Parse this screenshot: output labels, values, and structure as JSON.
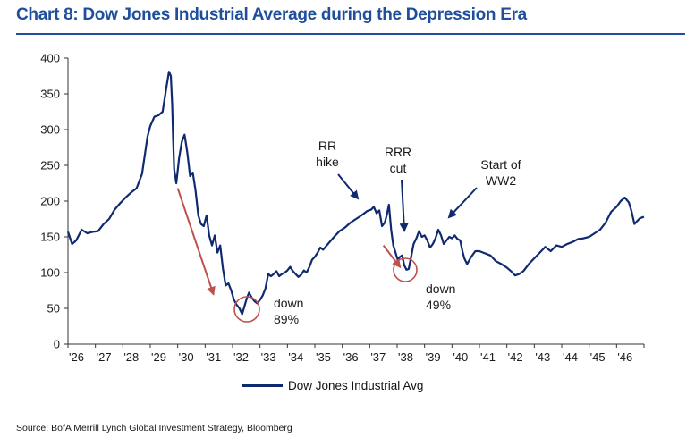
{
  "header": {
    "title": "Chart 8: Dow Jones Industrial Average during the Depression Era"
  },
  "footer": {
    "source": "Source: BofA Merrill Lynch Global Investment Strategy, Bloomberg"
  },
  "colors": {
    "title": "#1f4e9c",
    "series": "#0f2a6e",
    "arrow_red": "#c0504d",
    "arrow_blue": "#0f2a6e",
    "circle": "#c0504d"
  },
  "chart_data": {
    "type": "line",
    "title": "Chart 8: Dow Jones Industrial Average during the Depression Era",
    "xlabel": "",
    "ylabel": "",
    "xlim": [
      1926.0,
      1947.0
    ],
    "ylim": [
      0,
      400
    ],
    "yticks": [
      0,
      50,
      100,
      150,
      200,
      250,
      300,
      350,
      400
    ],
    "xtick_labels": [
      "'26",
      "'27",
      "'28",
      "'29",
      "'30",
      "'31",
      "'32",
      "'33",
      "'34",
      "'35",
      "'36",
      "'37",
      "'38",
      "'39",
      "'40",
      "'41",
      "'42",
      "'43",
      "'44",
      "'45",
      "'46"
    ],
    "xtick_positions": [
      1926,
      1927,
      1928,
      1929,
      1930,
      1931,
      1932,
      1933,
      1934,
      1935,
      1936,
      1937,
      1938,
      1939,
      1940,
      1941,
      1942,
      1943,
      1944,
      1945,
      1946
    ],
    "legend": {
      "position": "bottom",
      "entries": [
        "Dow Jones Industrial Avg"
      ]
    },
    "grid": false,
    "series": [
      {
        "name": "Dow Jones Industrial Avg",
        "x": [
          1926.0,
          1926.15,
          1926.3,
          1926.5,
          1926.7,
          1926.9,
          1927.1,
          1927.3,
          1927.5,
          1927.7,
          1927.9,
          1928.1,
          1928.3,
          1928.5,
          1928.7,
          1928.9,
          1929.0,
          1929.15,
          1929.3,
          1929.45,
          1929.6,
          1929.68,
          1929.75,
          1929.8,
          1929.83,
          1929.87,
          1929.95,
          1930.05,
          1930.15,
          1930.25,
          1930.35,
          1930.45,
          1930.55,
          1930.65,
          1930.75,
          1930.85,
          1930.95,
          1931.05,
          1931.15,
          1931.25,
          1931.35,
          1931.45,
          1931.55,
          1931.65,
          1931.75,
          1931.85,
          1931.95,
          1932.05,
          1932.15,
          1932.25,
          1932.35,
          1932.45,
          1932.52,
          1932.6,
          1932.7,
          1932.8,
          1932.9,
          1933.0,
          1933.1,
          1933.2,
          1933.3,
          1933.4,
          1933.5,
          1933.6,
          1933.7,
          1933.8,
          1933.9,
          1934.0,
          1934.1,
          1934.2,
          1934.3,
          1934.4,
          1934.5,
          1934.6,
          1934.7,
          1934.8,
          1934.9,
          1935.0,
          1935.1,
          1935.2,
          1935.3,
          1935.5,
          1935.7,
          1935.9,
          1936.1,
          1936.3,
          1936.5,
          1936.7,
          1936.9,
          1937.05,
          1937.15,
          1937.25,
          1937.35,
          1937.45,
          1937.55,
          1937.62,
          1937.7,
          1937.78,
          1937.86,
          1937.94,
          1938.02,
          1938.1,
          1938.18,
          1938.26,
          1938.34,
          1938.42,
          1938.5,
          1938.6,
          1938.7,
          1938.8,
          1938.9,
          1939.0,
          1939.1,
          1939.2,
          1939.3,
          1939.4,
          1939.5,
          1939.6,
          1939.7,
          1939.8,
          1939.9,
          1940.0,
          1940.1,
          1940.2,
          1940.3,
          1940.38,
          1940.45,
          1940.55,
          1940.7,
          1940.85,
          1941.0,
          1941.2,
          1941.4,
          1941.6,
          1941.8,
          1942.0,
          1942.15,
          1942.3,
          1942.45,
          1942.6,
          1942.8,
          1943.0,
          1943.2,
          1943.4,
          1943.6,
          1943.8,
          1944.0,
          1944.2,
          1944.4,
          1944.6,
          1944.8,
          1945.0,
          1945.2,
          1945.4,
          1945.6,
          1945.8,
          1946.0,
          1946.15,
          1946.3,
          1946.45,
          1946.55,
          1946.65,
          1946.75,
          1946.85,
          1947.0
        ],
        "values": [
          157,
          140,
          145,
          160,
          155,
          157,
          158,
          168,
          175,
          188,
          197,
          205,
          212,
          218,
          238,
          290,
          305,
          318,
          320,
          325,
          362,
          381,
          375,
          335,
          290,
          245,
          225,
          260,
          283,
          293,
          268,
          235,
          240,
          215,
          180,
          168,
          165,
          180,
          152,
          138,
          152,
          128,
          138,
          105,
          82,
          85,
          75,
          62,
          55,
          50,
          42,
          55,
          64,
          72,
          65,
          60,
          57,
          62,
          68,
          78,
          98,
          95,
          98,
          102,
          95,
          98,
          100,
          103,
          108,
          102,
          98,
          94,
          97,
          103,
          100,
          108,
          118,
          122,
          128,
          135,
          132,
          141,
          150,
          158,
          163,
          170,
          175,
          180,
          186,
          188,
          192,
          183,
          187,
          165,
          170,
          180,
          195,
          160,
          138,
          128,
          118,
          122,
          124,
          110,
          104,
          105,
          120,
          140,
          148,
          158,
          150,
          152,
          145,
          135,
          140,
          148,
          160,
          152,
          140,
          145,
          150,
          148,
          152,
          147,
          145,
          130,
          120,
          112,
          122,
          130,
          130,
          127,
          124,
          116,
          112,
          107,
          102,
          96,
          98,
          102,
          112,
          120,
          128,
          136,
          130,
          138,
          136,
          140,
          143,
          147,
          148,
          150,
          155,
          160,
          170,
          185,
          192,
          200,
          205,
          198,
          185,
          168,
          172,
          176,
          178
        ]
      }
    ],
    "annotations": [
      {
        "text_lines": [
          "RR",
          "hike"
        ],
        "arrow_color": "#0f2a6e",
        "target": [
          1936.9,
          188
        ]
      },
      {
        "text_lines": [
          "RRR",
          "cut"
        ],
        "arrow_color": "#0f2a6e",
        "target": [
          1938.1,
          158
        ]
      },
      {
        "text_lines": [
          "Start of",
          "WW2"
        ],
        "arrow_color": "#0f2a6e",
        "target": [
          1939.9,
          172
        ]
      },
      {
        "text_lines": [
          "down",
          "89%"
        ],
        "circle_at": [
          1932.45,
          48
        ]
      },
      {
        "text_lines": [
          "down",
          "49%"
        ],
        "circle_at": [
          1938.3,
          110
        ]
      }
    ],
    "red_arrows": [
      {
        "from": [
          1930.0,
          218
        ],
        "to": [
          1931.3,
          70
        ]
      },
      {
        "from": [
          1937.5,
          138
        ],
        "to": [
          1938.1,
          108
        ]
      }
    ]
  }
}
